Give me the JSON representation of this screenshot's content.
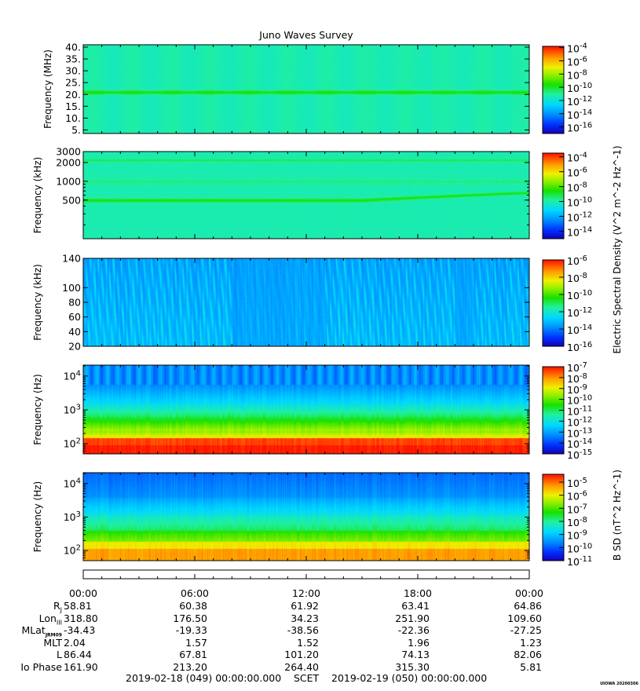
{
  "chart_data": {
    "type": "heatmap",
    "title": "Juno Waves Survey",
    "panels": [
      {
        "name": "hfr_high",
        "ylabel": "Frequency (MHz)",
        "yscale": "linear",
        "ylim": [
          3.5,
          41
        ],
        "yticks": [
          "5.",
          "10.",
          "15.",
          "20.",
          "25.",
          "30.",
          "35.",
          "40."
        ],
        "colorbar": {
          "labels": [
            "10^-4",
            "10^-6",
            "10^-8",
            "10^-10",
            "10^-12",
            "10^-14",
            "10^-16"
          ],
          "range_log10": [
            -17,
            -3.8
          ]
        },
        "features": [
          {
            "kind": "band",
            "y": 21,
            "label": ""
          }
        ]
      },
      {
        "name": "hfr_low",
        "ylabel": "Frequency (kHz)",
        "yscale": "log",
        "ylim": [
          120,
          3000
        ],
        "yticks": [
          "500",
          "1000",
          "2000",
          "3000"
        ],
        "colorbar": {
          "labels": [
            "10^-4",
            "10^-6",
            "10^-8",
            "10^-10",
            "10^-12",
            "10^-14"
          ],
          "range_log10": [
            -15,
            -3.5
          ]
        },
        "features": [
          {
            "kind": "band",
            "y": 500
          },
          {
            "kind": "band",
            "y": 2200
          }
        ]
      },
      {
        "name": "lfr_high",
        "ylabel": "Frequency (kHz)",
        "yscale": "linear",
        "ylim": [
          20,
          140
        ],
        "yticks": [
          "20",
          "40",
          "60",
          "80",
          "100",
          "140"
        ],
        "colorbar": {
          "labels": [
            "10^-6",
            "10^-8",
            "10^-10",
            "10^-12",
            "10^-14",
            "10^-16"
          ],
          "range_log10": [
            -16,
            -6
          ]
        }
      },
      {
        "name": "lfr_low",
        "ylabel": "Frequency (Hz)",
        "yscale": "log",
        "ylim": [
          50,
          21000
        ],
        "yticks": [
          "10^2",
          "10^3",
          "10^4"
        ],
        "colorbar": {
          "labels": [
            "10^-7",
            "10^-8",
            "10^-9",
            "10^-10",
            "10^-11",
            "10^-12",
            "10^-13",
            "10^-14",
            "10^-15"
          ],
          "range_log10": [
            -15,
            -7
          ]
        }
      },
      {
        "name": "magnetic",
        "ylabel": "Frequency (Hz)",
        "yscale": "log",
        "ylim": [
          50,
          21000
        ],
        "yticks": [
          "10^2",
          "10^3",
          "10^4"
        ],
        "colorbar": {
          "labels": [
            "10^-5",
            "10^-6",
            "10^-7",
            "10^-8",
            "10^-9",
            "10^-10",
            "10^-11"
          ],
          "range_log10": [
            -11,
            -4.4
          ]
        }
      }
    ],
    "colorbar_label_electric": "Electric Spectral Density (V^2 m^-2 Hz^-1)",
    "colorbar_label_magnetic": "B SD (nT^2 Hz^-1)",
    "x": {
      "tick_labels": [
        "00:00",
        "06:00",
        "12:00",
        "18:00",
        "00:00"
      ],
      "range_hours": [
        0,
        24
      ]
    }
  },
  "ephemeris": {
    "rows": [
      {
        "label": "R",
        "sub": "J",
        "values": [
          "58.81",
          "60.38",
          "61.92",
          "63.41",
          "64.86"
        ]
      },
      {
        "label": "Lon",
        "sub": "III",
        "values": [
          "318.80",
          "176.50",
          "34.23",
          "251.90",
          "109.60"
        ]
      },
      {
        "label": "MLat",
        "sub": "JRM09",
        "values": [
          "-34.43",
          "-19.33",
          "-38.56",
          "-22.36",
          "-27.25"
        ]
      },
      {
        "label": "MLT",
        "sub": "",
        "values": [
          "2.04",
          "1.57",
          "1.52",
          "1.96",
          "1.23"
        ]
      },
      {
        "label": "L",
        "sub": "",
        "values": [
          "86.44",
          "67.81",
          "101.20",
          "74.13",
          "82.06"
        ]
      },
      {
        "label": "Io Phase",
        "sub": "",
        "values": [
          "161.90",
          "213.20",
          "264.40",
          "315.30",
          "5.81"
        ]
      }
    ]
  },
  "footer": {
    "start": "2019-02-18 (049) 00:00:00.000",
    "scet": "SCET",
    "end": "2019-02-19 (050) 00:00:00.000",
    "stamp": "UIOWA 20200306"
  }
}
